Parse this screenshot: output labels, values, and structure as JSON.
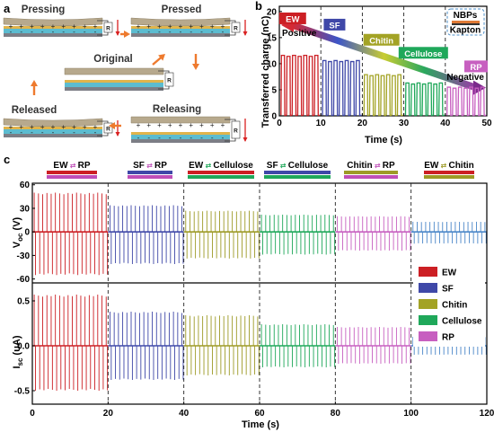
{
  "panel_a": {
    "letter": "a",
    "stages": [
      "Pressing",
      "Pressed",
      "Original",
      "Released",
      "Releasing"
    ],
    "load_label": "R",
    "arrow_color": "#ee7a2e"
  },
  "panel_b": {
    "letter": "b",
    "ylabel": "Transferred charge (nC)",
    "xlabel": "Time (s)",
    "xticks": [
      "0",
      "10",
      "20",
      "30",
      "40",
      "50"
    ],
    "yticks": [
      "0",
      "5",
      "10",
      "15",
      "20"
    ],
    "positive_label": "Positive",
    "negative_label": "Negative",
    "inset": {
      "top": "NBPs",
      "bottom": "Kapton"
    }
  },
  "panel_c": {
    "letter": "c",
    "voc_label": "V",
    "voc_sub": "oc",
    "voc_unit": " (V)",
    "isc_label": "I",
    "isc_sub": "sc",
    "isc_unit": " (uA)",
    "xlabel": "Time (s)",
    "xticks": [
      "0",
      "20",
      "40",
      "60",
      "80",
      "100",
      "120"
    ],
    "voc_ticks": [
      "60",
      "30",
      "0",
      "-30",
      "-60"
    ],
    "isc_ticks": [
      "0.5",
      "0.0",
      "-0.5"
    ],
    "pairs": [
      {
        "a": "EW",
        "b": "RP",
        "ca": "#cc1f24",
        "cb": "#bf4fb8"
      },
      {
        "a": "SF",
        "b": "RP",
        "ca": "#3f48a8",
        "cb": "#bf4fb8"
      },
      {
        "a": "EW",
        "b": "Cellulose",
        "ca": "#cc1f24",
        "cb": "#1fa85a"
      },
      {
        "a": "SF",
        "b": "Cellulose",
        "ca": "#3f48a8",
        "cb": "#1fa85a"
      },
      {
        "a": "Chitin",
        "b": "RP",
        "ca": "#9d9a26",
        "cb": "#bf4fb8"
      },
      {
        "a": "EW",
        "b": "Chitin",
        "ca": "#cc1f24",
        "cb": "#9d9a26"
      }
    ]
  },
  "materials": [
    {
      "name": "EW",
      "color": "#cc1f24"
    },
    {
      "name": "SF",
      "color": "#3f48a8"
    },
    {
      "name": "Chitin",
      "color": "#a3a325"
    },
    {
      "name": "Cellulose",
      "color": "#1fa85a"
    },
    {
      "name": "RP",
      "color": "#c75fc0"
    }
  ],
  "chart_data": [
    {
      "type": "line",
      "title": "",
      "xlabel": "Time (s)",
      "ylabel": "Transferred charge (nC)",
      "xlim": [
        0,
        50
      ],
      "ylim": [
        0,
        21
      ],
      "series": [
        {
          "name": "EW",
          "x_range": [
            0,
            10
          ],
          "value": 11.6
        },
        {
          "name": "SF",
          "x_range": [
            10,
            20
          ],
          "value": 10.6
        },
        {
          "name": "Chitin",
          "x_range": [
            20,
            30
          ],
          "value": 7.9
        },
        {
          "name": "Cellulose",
          "x_range": [
            30,
            40
          ],
          "value": 6.3
        },
        {
          "name": "RP",
          "x_range": [
            40,
            50
          ],
          "value": 5.5
        }
      ]
    },
    {
      "type": "line",
      "title": "",
      "xlabel": "Time (s)",
      "ylabel": "Voc (V)",
      "xlim": [
        0,
        120
      ],
      "ylim": [
        -65,
        62
      ],
      "segments": [
        {
          "pair": "EW-RP",
          "x_range": [
            0,
            20
          ],
          "pos": 50,
          "neg": -55
        },
        {
          "pair": "SF-RP",
          "x_range": [
            20,
            40
          ],
          "pos": 34,
          "neg": -41
        },
        {
          "pair": "EW-Cellulose",
          "x_range": [
            40,
            60
          ],
          "pos": 27,
          "neg": -34
        },
        {
          "pair": "SF-Cellulose",
          "x_range": [
            60,
            80
          ],
          "pos": 22,
          "neg": -29
        },
        {
          "pair": "Chitin-RP",
          "x_range": [
            80,
            100
          ],
          "pos": 20,
          "neg": -24
        },
        {
          "pair": "EW-Chitin",
          "x_range": [
            100,
            120
          ],
          "pos": 13,
          "neg": -15
        }
      ]
    },
    {
      "type": "line",
      "title": "",
      "xlabel": "Time (s)",
      "ylabel": "Isc (uA)",
      "xlim": [
        0,
        120
      ],
      "ylim": [
        -0.65,
        0.7
      ],
      "segments": [
        {
          "pair": "EW-RP",
          "x_range": [
            0,
            20
          ],
          "pos": 0.57,
          "neg": -0.5
        },
        {
          "pair": "SF-RP",
          "x_range": [
            20,
            40
          ],
          "pos": 0.38,
          "neg": -0.38
        },
        {
          "pair": "EW-Cellulose",
          "x_range": [
            40,
            60
          ],
          "pos": 0.34,
          "neg": -0.33
        },
        {
          "pair": "SF-Cellulose",
          "x_range": [
            60,
            80
          ],
          "pos": 0.24,
          "neg": -0.24
        },
        {
          "pair": "Chitin-RP",
          "x_range": [
            80,
            100
          ],
          "pos": 0.21,
          "neg": -0.2
        },
        {
          "pair": "EW-Chitin",
          "x_range": [
            100,
            120
          ],
          "pos": 0.1,
          "neg": -0.1
        }
      ]
    }
  ]
}
